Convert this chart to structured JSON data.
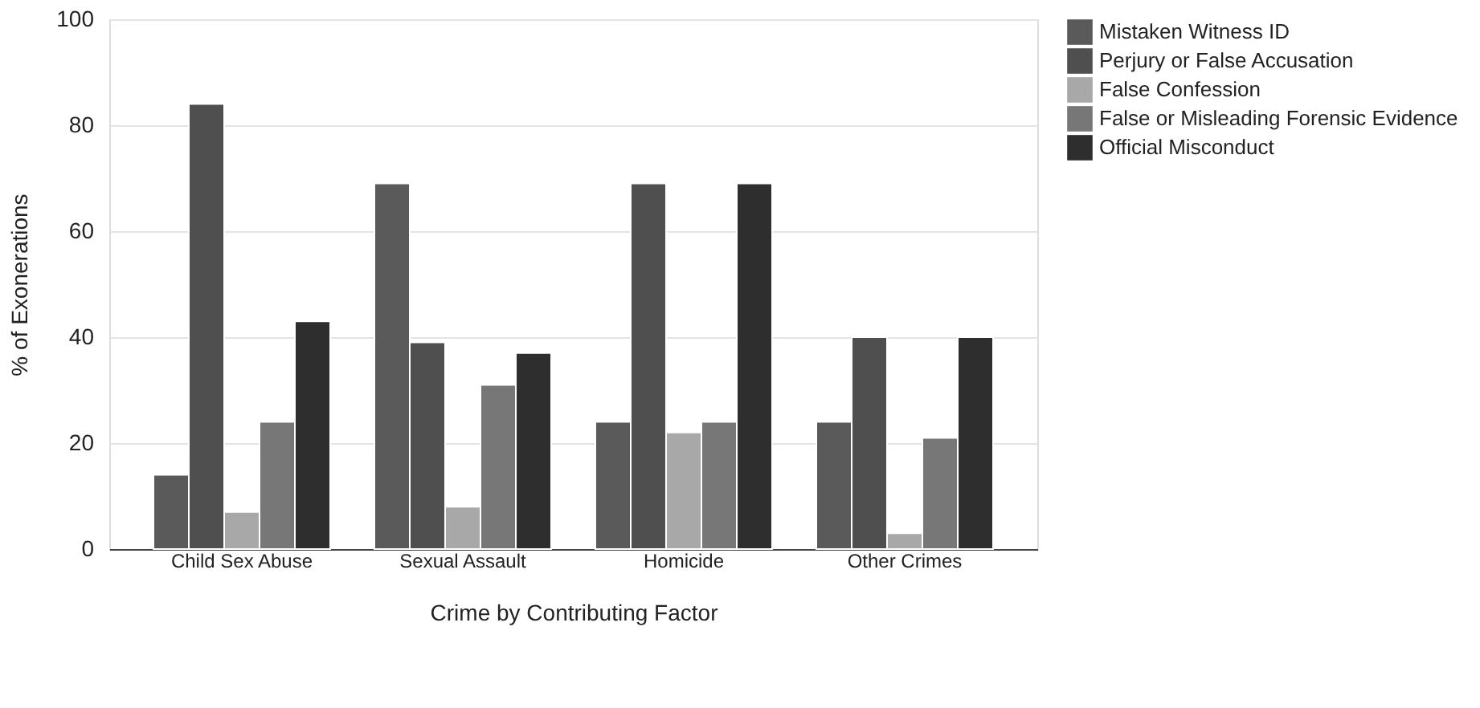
{
  "chart_data": {
    "type": "bar",
    "xlabel": "Crime by Contributing Factor",
    "ylabel": "% of Exonerations",
    "categories": [
      "Child Sex Abuse",
      "Sexual Assault",
      "Homicide",
      "Other Crimes"
    ],
    "series": [
      {
        "name": "Mistaken Witness ID",
        "color": "#5a5a5a",
        "values": [
          14,
          69,
          24,
          24
        ]
      },
      {
        "name": "Perjury or False Accusation",
        "color": "#4f4f4f",
        "values": [
          84,
          39,
          69,
          40
        ]
      },
      {
        "name": "False Confession",
        "color": "#a8a8a8",
        "values": [
          7,
          8,
          22,
          3
        ]
      },
      {
        "name": "False or Misleading Forensic Evidence",
        "color": "#777777",
        "values": [
          24,
          31,
          24,
          21
        ]
      },
      {
        "name": "Official Misconduct",
        "color": "#2e2e2e",
        "values": [
          43,
          37,
          69,
          40
        ]
      }
    ],
    "ylim": [
      0,
      100
    ],
    "yticks": [
      0,
      20,
      40,
      60,
      80,
      100
    ],
    "grid": "y",
    "legend": "top right"
  }
}
